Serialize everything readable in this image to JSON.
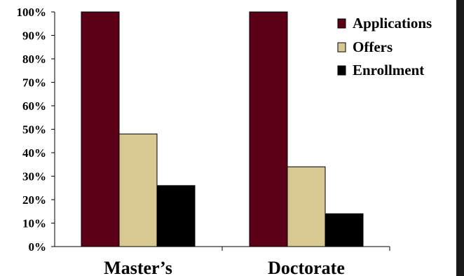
{
  "chart_data": {
    "type": "bar",
    "categories": [
      "Master’s",
      "Doctorate"
    ],
    "series": [
      {
        "name": "Applications",
        "values": [
          100,
          100
        ]
      },
      {
        "name": "Offers",
        "values": [
          48,
          34
        ]
      },
      {
        "name": "Enrollment",
        "values": [
          26,
          14
        ]
      }
    ],
    "y_ticks": [
      "0%",
      "10%",
      "20%",
      "30%",
      "40%",
      "50%",
      "60%",
      "70%",
      "80%",
      "90%",
      "100%"
    ],
    "ylim": [
      0,
      100
    ],
    "legend_position": "top-right",
    "grid": false
  },
  "colors": {
    "Applications": "#5c0018",
    "Offers": "#d8c891",
    "Enrollment": "#000000",
    "right_border": "#1a1a1a"
  }
}
